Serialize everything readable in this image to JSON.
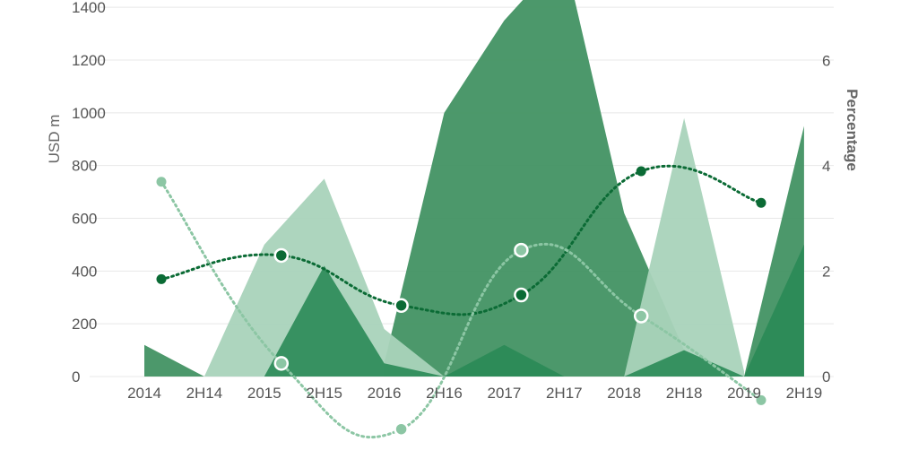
{
  "chart_data": {
    "type": "area",
    "title": "",
    "ylabel": "USD m",
    "y2label": "Percentage",
    "categories": [
      "2014",
      "2H14",
      "2015",
      "2H15",
      "2016",
      "2H16",
      "2017",
      "2H17",
      "2018",
      "2H18",
      "2019",
      "2H19"
    ],
    "ylim": [
      0,
      1400
    ],
    "y2lim": [
      0,
      7
    ],
    "yticks": [
      0,
      200,
      400,
      600,
      800,
      1000,
      1200,
      1400
    ],
    "y2ticks": [
      0,
      2,
      4,
      6
    ],
    "grid": true,
    "area_series": [
      {
        "values": [
          120,
          0,
          null,
          null,
          50,
          1000,
          1350,
          1600,
          620,
          100,
          0,
          950
        ],
        "color": "#3d8f5e",
        "opacity": 0.92
      },
      {
        "values": [
          null,
          0,
          500,
          750,
          180,
          0,
          null,
          null,
          0,
          980,
          20,
          null
        ],
        "color": "#a9d3ba",
        "opacity": 0.95
      },
      {
        "values": [
          null,
          null,
          0,
          420,
          50,
          0,
          120,
          0,
          0,
          100,
          0,
          500
        ],
        "color": "#2a8a56",
        "opacity": 0.9
      }
    ],
    "line_series": [
      {
        "x": [
          "2014",
          "2015",
          "2016",
          "2017",
          "2018",
          "2019"
        ],
        "values": [
          1.85,
          2.3,
          1.35,
          1.55,
          3.9,
          3.3
        ],
        "color": "#0b6b35",
        "marker": "filled"
      },
      {
        "x": [
          "2014",
          "2015",
          "2016",
          "2017",
          "2018",
          "2019"
        ],
        "values": [
          3.7,
          0.25,
          -1.0,
          2.4,
          1.15,
          -0.45
        ],
        "color": "#8cc6a4",
        "marker": "ring"
      }
    ]
  }
}
